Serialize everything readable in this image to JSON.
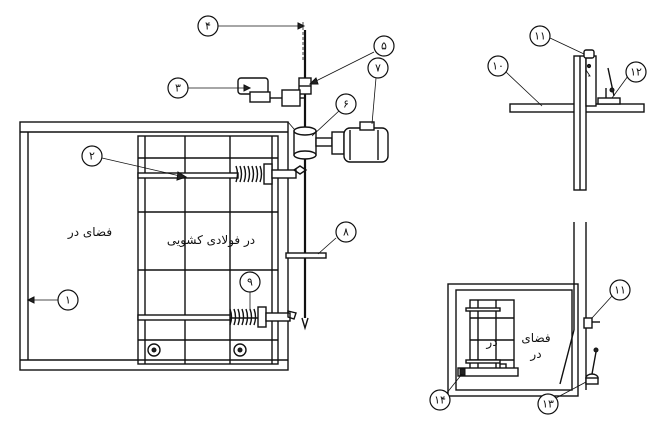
{
  "labels": {
    "door_space": "فضای در",
    "steel_sliding_door": "در فولادی کشویی",
    "door_space_split_line1": "فضای",
    "door_space_split_line2": "در",
    "door_small": "در"
  },
  "callouts": {
    "c1": "۱",
    "c2": "۲",
    "c3": "۳",
    "c4": "۴",
    "c5": "۵",
    "c6": "۶",
    "c7": "۷",
    "c8": "۸",
    "c9": "۹",
    "c10": "۱۰",
    "c11a": "۱۱",
    "c11b": "۱۱",
    "c12": "۱۲",
    "c13": "۱۳",
    "c14": "۱۴"
  },
  "colors": {
    "line": "#111111",
    "background": "#ffffff"
  }
}
